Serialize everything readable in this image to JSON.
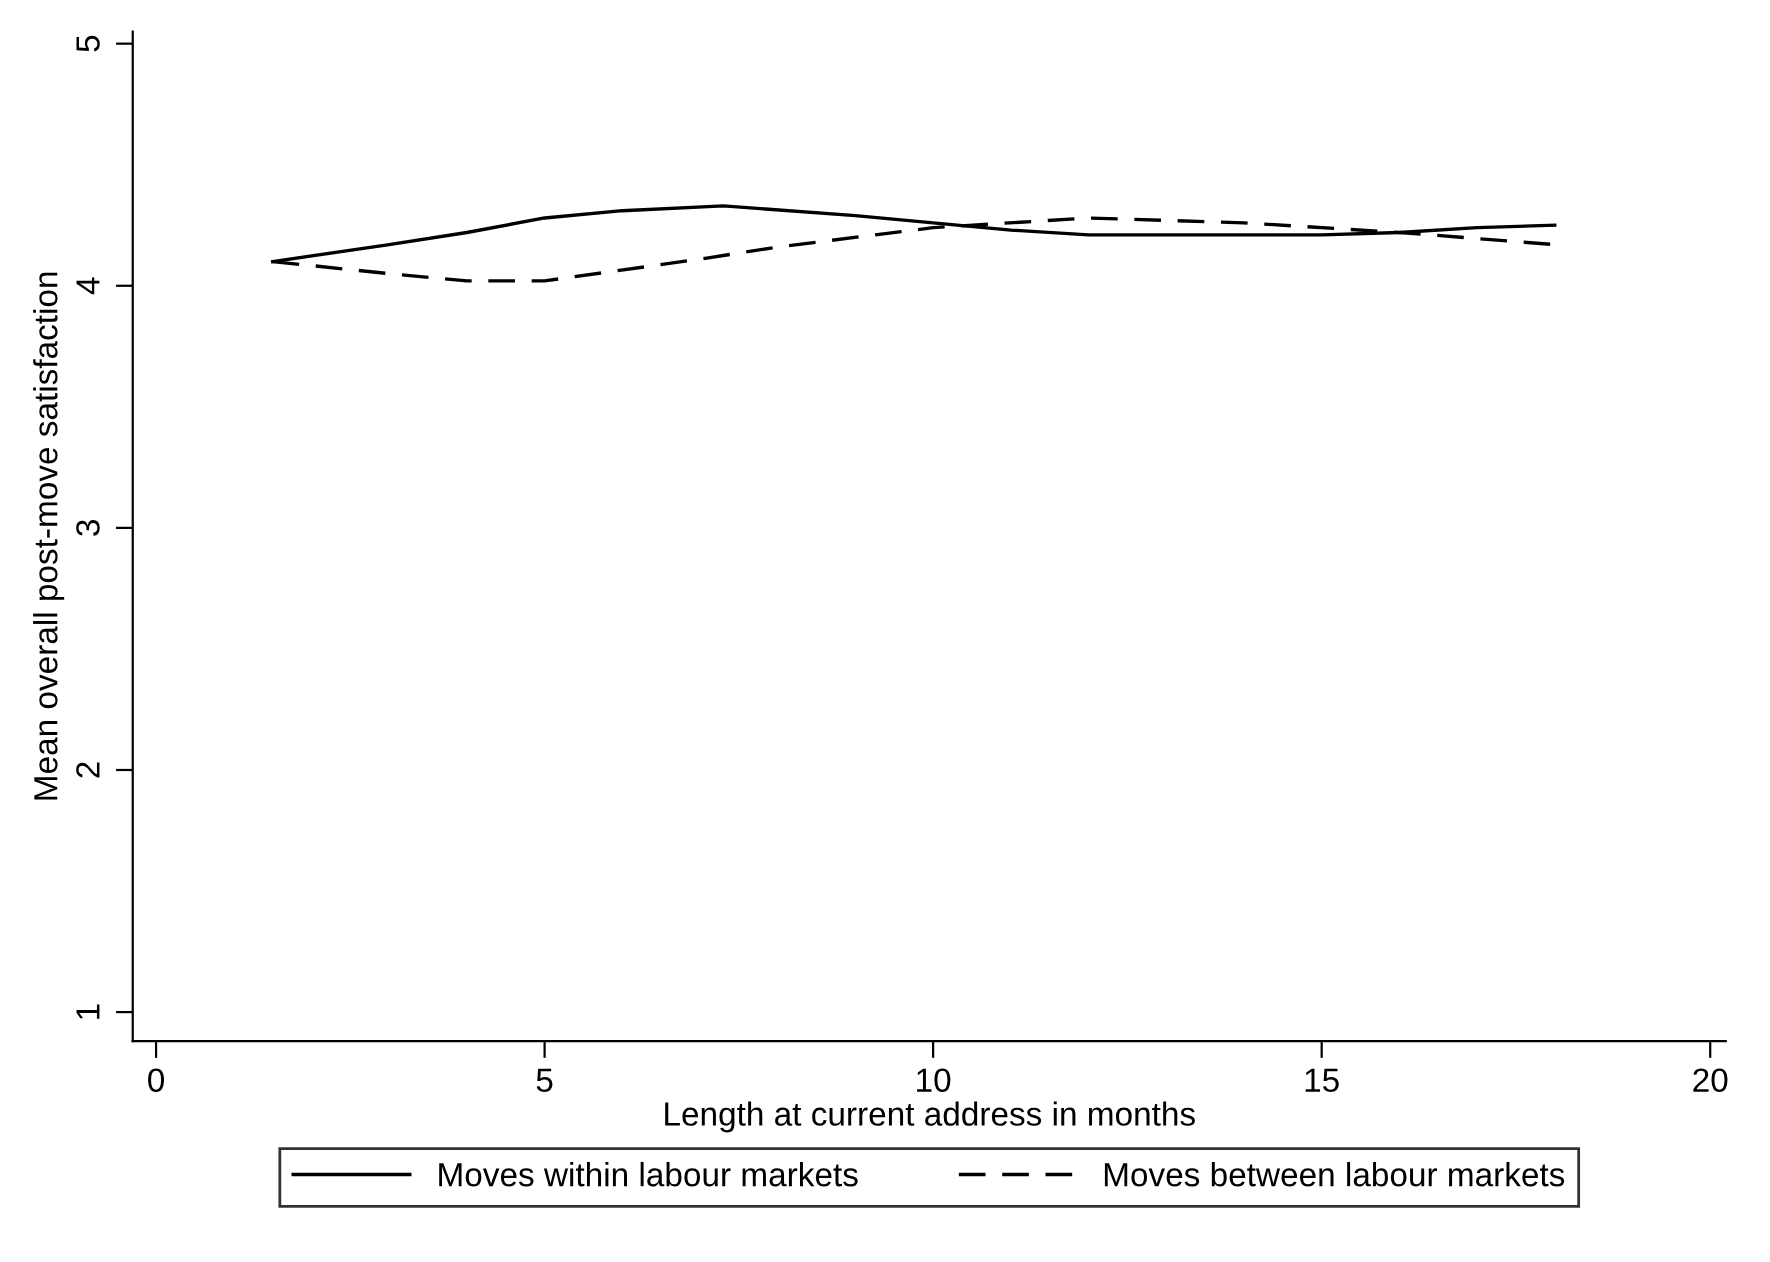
{
  "chart_data": {
    "type": "line",
    "xlabel": "Length at current address in months",
    "ylabel": "Mean overall post-move satisfaction",
    "xlim": [
      -0.3,
      20.2
    ],
    "ylim": [
      0.88,
      5.05
    ],
    "xticks": [
      0,
      5,
      10,
      15,
      20
    ],
    "yticks": [
      1,
      2,
      3,
      4,
      5
    ],
    "grid": false,
    "legend": "bottom",
    "marker": "none",
    "series": [
      {
        "name": "Moves within labour markets",
        "color": "#000000",
        "line_style": "solid",
        "x": [
          1.5,
          3,
          4,
          5,
          6,
          7.3,
          9,
          10,
          11,
          12,
          15,
          16,
          17,
          18
        ],
        "values": [
          4.1,
          4.17,
          4.22,
          4.28,
          4.31,
          4.33,
          4.29,
          4.26,
          4.23,
          4.21,
          4.21,
          4.22,
          4.24,
          4.25
        ]
      },
      {
        "name": "Moves between labour markets",
        "color": "#000000",
        "line_style": "dashed",
        "x": [
          1.5,
          3,
          4,
          5,
          7,
          8,
          10,
          12,
          14,
          16,
          18
        ],
        "values": [
          4.1,
          4.05,
          4.02,
          4.02,
          4.11,
          4.16,
          4.24,
          4.28,
          4.26,
          4.22,
          4.17
        ]
      }
    ]
  }
}
